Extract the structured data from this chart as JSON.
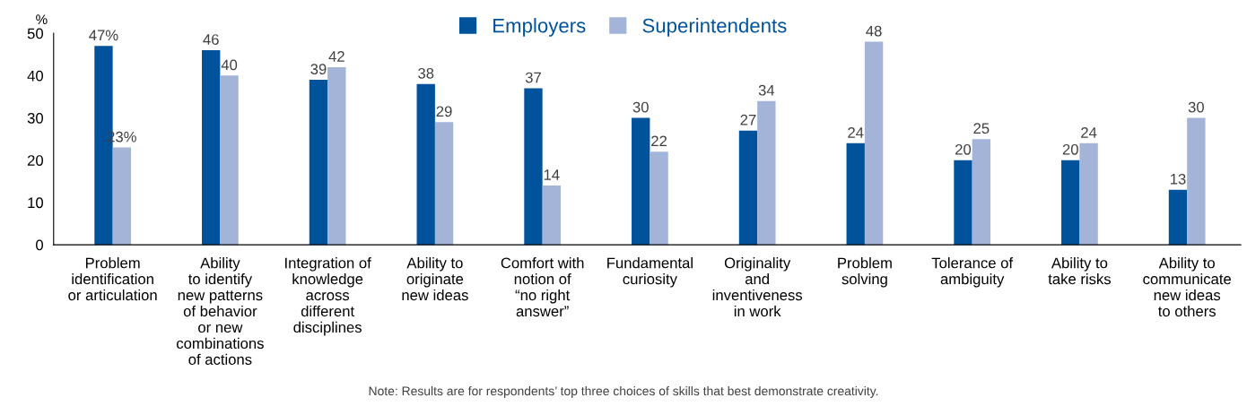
{
  "chart_data": {
    "type": "bar",
    "categories": [
      "Problem\nidentification\nor articulation",
      "Ability\nto identify\nnew patterns\nof behavior\nor new\ncombinations\nof actions",
      "Integration of\nknowledge\nacross\ndifferent\ndisciplines",
      "Ability to\noriginate\nnew ideas",
      "Comfort with\nnotion of\n“no right\nanswer”",
      "Fundamental\ncuriosity",
      "Originality\nand\ninventiveness\nin work",
      "Problem\nsolving",
      "Tolerance of\nambiguity",
      "Ability to\ntake risks",
      "Ability to\ncommunicate\nnew ideas\nto others"
    ],
    "series": [
      {
        "name": "Employers",
        "color": "#00529b",
        "values": [
          47,
          46,
          39,
          38,
          37,
          30,
          27,
          24,
          20,
          20,
          13
        ],
        "value_labels": [
          "47%",
          "46",
          "39",
          "38",
          "37",
          "30",
          "27",
          "24",
          "20",
          "20",
          "13"
        ]
      },
      {
        "name": "Superintendents",
        "color": "#a3b4d8",
        "values": [
          23,
          40,
          42,
          29,
          14,
          22,
          34,
          48,
          25,
          24,
          30
        ],
        "value_labels": [
          "23%",
          "40",
          "42",
          "29",
          "14",
          "22",
          "34",
          "48",
          "25",
          "24",
          "30"
        ]
      }
    ],
    "ylabel": "%",
    "ylim": [
      0,
      50
    ],
    "yticks": [
      0,
      10,
      20,
      30,
      40,
      50
    ],
    "grid": false,
    "legend": "top",
    "annotations": [
      "Note: Results are for respondents’ top three choices of skills that best demonstrate creativity."
    ]
  }
}
